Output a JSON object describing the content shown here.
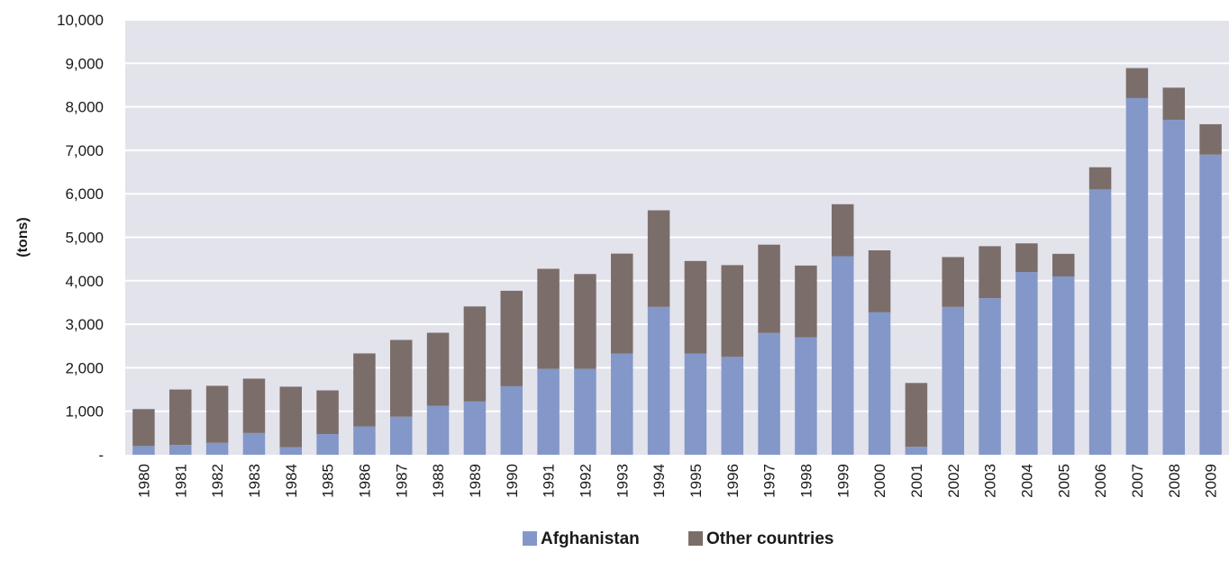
{
  "chart_data": {
    "type": "bar",
    "stacked": true,
    "title": "",
    "xlabel": "",
    "ylabel": "(tons)",
    "ylim": [
      0,
      10000
    ],
    "y_ticks": [
      {
        "value": 0,
        "label": "-"
      },
      {
        "value": 1000,
        "label": "1,000"
      },
      {
        "value": 2000,
        "label": "2,000"
      },
      {
        "value": 3000,
        "label": "3,000"
      },
      {
        "value": 4000,
        "label": "4,000"
      },
      {
        "value": 5000,
        "label": "5,000"
      },
      {
        "value": 6000,
        "label": "6,000"
      },
      {
        "value": 7000,
        "label": "7,000"
      },
      {
        "value": 8000,
        "label": "8,000"
      },
      {
        "value": 9000,
        "label": "9,000"
      },
      {
        "value": 10000,
        "label": "10,000"
      }
    ],
    "grid": true,
    "legend_position": "bottom-center",
    "plot_background": "#e3e3ec",
    "categories": [
      "1980",
      "1981",
      "1982",
      "1983",
      "1984",
      "1985",
      "1986",
      "1987",
      "1988",
      "1989",
      "1990",
      "1991",
      "1992",
      "1993",
      "1994",
      "1995",
      "1996",
      "1997",
      "1998",
      "1999",
      "2000",
      "2001",
      "2002",
      "2003",
      "2004",
      "2005",
      "2006",
      "2007",
      "2008",
      "2009"
    ],
    "series": [
      {
        "name": "Afghanistan",
        "color": "#8497c9",
        "values": [
          200,
          225,
          275,
          500,
          175,
          475,
          650,
          875,
          1125,
          1225,
          1575,
          1975,
          1975,
          2325,
          3400,
          2325,
          2250,
          2800,
          2700,
          4565,
          3275,
          185,
          3400,
          3600,
          4200,
          4100,
          6100,
          8200,
          7700,
          6900
        ]
      },
      {
        "name": "Other countries",
        "color": "#7b6e6a",
        "values": [
          850,
          1275,
          1310,
          1250,
          1390,
          1005,
          1680,
          1765,
          1680,
          2185,
          2195,
          2300,
          2180,
          2300,
          2220,
          2130,
          2110,
          2030,
          1650,
          1195,
          1425,
          1465,
          1145,
          1195,
          660,
          520,
          510,
          690,
          740,
          700
        ]
      }
    ]
  }
}
